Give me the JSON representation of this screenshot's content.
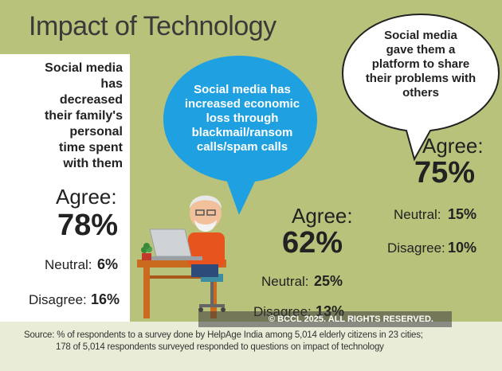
{
  "title": "Impact of Technology",
  "chart_data": {
    "type": "table",
    "items": [
      {
        "question": "Social media has decreased their family's personal time spent with them",
        "question_lines": [
          "Social media",
          "has",
          "decreased",
          "their family's",
          "personal",
          "time spent",
          "with them"
        ],
        "agree_label": "Agree:",
        "agree": "78%",
        "neutral_label": "Neutral:",
        "neutral": "6%",
        "disagree_label": "Disagree:",
        "disagree": "16%"
      },
      {
        "question": "Social media has increased economic loss through blackmail/ransom calls/spam calls",
        "question_lines": [
          "Social media has",
          "increased economic",
          "loss through",
          "blackmail/ransom",
          "calls/spam calls"
        ],
        "agree_label": "Agree:",
        "agree": "62%",
        "neutral_label": "Neutral:",
        "neutral": "25%",
        "disagree_label": "Disagree:",
        "disagree": "13%"
      },
      {
        "question": "Social media gave them a platform to share their problems with others",
        "question_lines": [
          "Social media",
          "gave them a",
          "platform to share",
          "their problems with",
          "others"
        ],
        "agree_label": "Agree:",
        "agree": "75%",
        "neutral_label": "Neutral:",
        "neutral": "15%",
        "disagree_label": "Disagree:",
        "disagree": "10%"
      }
    ]
  },
  "watermark": "© BCCL 2025. ALL RIGHTS RESERVED.",
  "source_lines": [
    "Source:   % of respondents to a survey done by HelpAge India among 5,014 elderly citizens in 23 cities;",
    "178 of 5,014 respondents surveyed responded to questions on impact of technology"
  ],
  "colors": {
    "background": "#b9c27a",
    "bubble_blue": "#1fa0e0",
    "footer": "#e9ecd7"
  }
}
